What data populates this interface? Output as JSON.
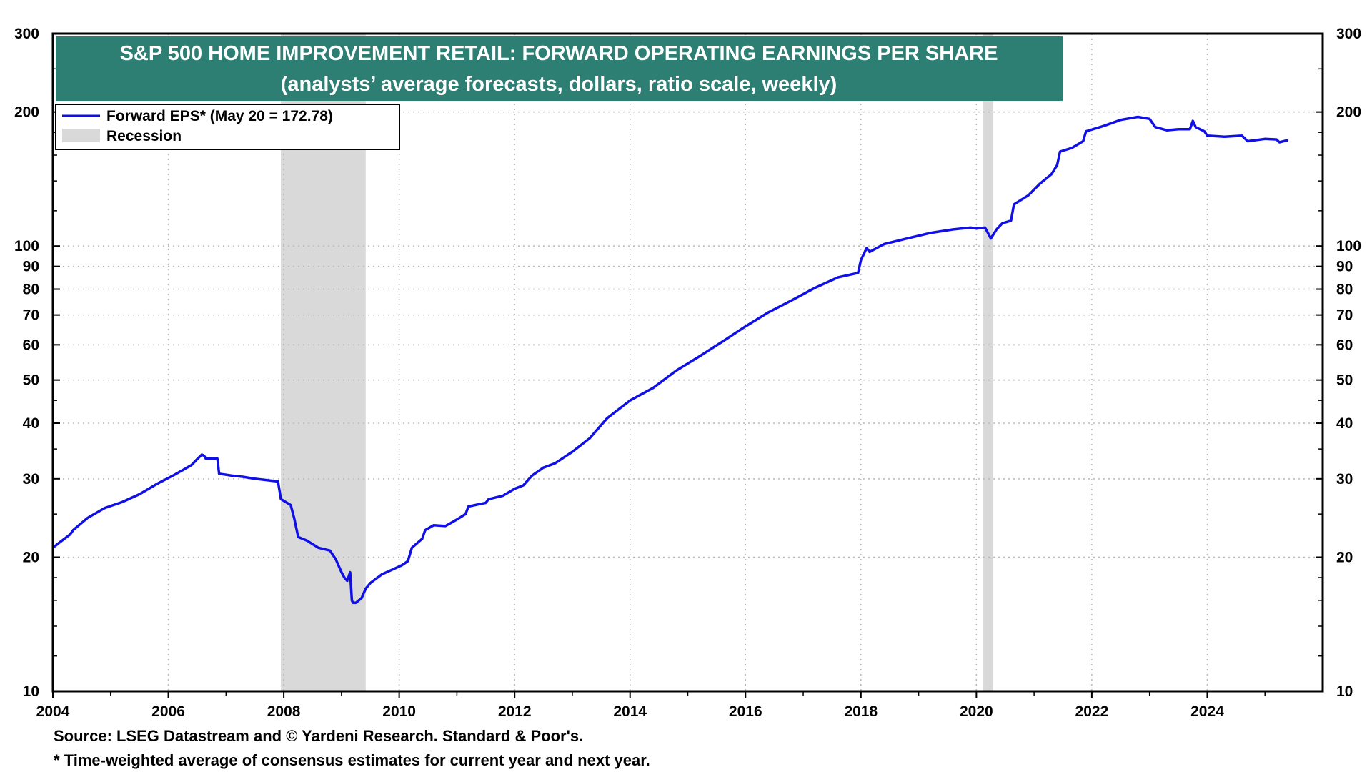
{
  "chart_data": {
    "type": "line",
    "title": "S&P 500 HOME IMPROVEMENT RETAIL: FORWARD OPERATING EARNINGS PER SHARE",
    "subtitle": "(analysts’ average forecasts, dollars, ratio scale, weekly)",
    "y_scale": "log",
    "ylim": [
      10,
      300
    ],
    "xlim": [
      2004,
      2026.0
    ],
    "y_ticks": [
      "300",
      "200",
      "100",
      "90",
      "80",
      "70",
      "60",
      "50",
      "40",
      "30",
      "20",
      "10"
    ],
    "x_ticks": [
      "2004",
      "2006",
      "2008",
      "2010",
      "2012",
      "2014",
      "2016",
      "2018",
      "2020",
      "2022",
      "2024"
    ],
    "grid": true,
    "legend_position": "top-left",
    "legend": {
      "series_label": "Forward EPS* (May 20 = 172.78)",
      "recession_label": "Recession"
    },
    "recessions": [
      {
        "start": 2007.95,
        "end": 2009.42
      },
      {
        "start": 2020.12,
        "end": 2020.29
      }
    ],
    "series": [
      {
        "name": "Forward EPS* (May 20 = 172.78)",
        "color": "#1010e6",
        "x": [
          2004.0,
          2004.1,
          2004.3,
          2004.35,
          2004.6,
          2004.9,
          2005.2,
          2005.5,
          2005.8,
          2006.1,
          2006.4,
          2006.5,
          2006.58,
          2006.62,
          2006.65,
          2006.85,
          2006.88,
          2007.1,
          2007.3,
          2007.5,
          2007.7,
          2007.8,
          2007.9,
          2007.95,
          2008.12,
          2008.18,
          2008.25,
          2008.4,
          2008.6,
          2008.8,
          2008.9,
          2009.0,
          2009.05,
          2009.1,
          2009.15,
          2009.18,
          2009.2,
          2009.25,
          2009.35,
          2009.42,
          2009.5,
          2009.7,
          2009.9,
          2010.05,
          2010.15,
          2010.22,
          2010.4,
          2010.45,
          2010.6,
          2010.8,
          2011.0,
          2011.15,
          2011.2,
          2011.5,
          2011.55,
          2011.8,
          2012.0,
          2012.15,
          2012.3,
          2012.5,
          2012.7,
          2013.0,
          2013.3,
          2013.6,
          2014.0,
          2014.4,
          2014.8,
          2015.2,
          2015.6,
          2016.0,
          2016.4,
          2016.8,
          2017.2,
          2017.6,
          2017.95,
          2018.0,
          2018.1,
          2018.15,
          2018.4,
          2018.8,
          2019.2,
          2019.6,
          2019.9,
          2020.0,
          2020.15,
          2020.25,
          2020.35,
          2020.45,
          2020.6,
          2020.65,
          2020.9,
          2021.1,
          2021.3,
          2021.4,
          2021.45,
          2021.65,
          2021.85,
          2021.9,
          2022.2,
          2022.5,
          2022.8,
          2023.0,
          2023.1,
          2023.3,
          2023.5,
          2023.7,
          2023.75,
          2023.8,
          2023.95,
          2024.0,
          2024.3,
          2024.6,
          2024.7,
          2025.0,
          2025.2,
          2025.25,
          2025.4
        ],
        "values": [
          21,
          21.5,
          22.5,
          23.0,
          24.5,
          25.8,
          26.6,
          27.7,
          29.2,
          30.6,
          32.2,
          33.2,
          34.0,
          33.8,
          33.3,
          33.3,
          30.8,
          30.5,
          30.3,
          30.0,
          29.8,
          29.7,
          29.6,
          27.0,
          26.2,
          24.5,
          22.2,
          21.8,
          21.0,
          20.7,
          19.8,
          18.5,
          18.0,
          17.7,
          18.5,
          16.0,
          15.8,
          15.8,
          16.2,
          17.0,
          17.5,
          18.3,
          18.8,
          19.2,
          19.6,
          21.0,
          22.0,
          23.0,
          23.6,
          23.5,
          24.3,
          25.0,
          26.0,
          26.5,
          27.0,
          27.5,
          28.5,
          29.0,
          30.5,
          31.8,
          32.5,
          34.5,
          37.0,
          41.0,
          45.0,
          48.0,
          52.5,
          56.5,
          61.0,
          66.0,
          71.0,
          75.5,
          80.5,
          85.0,
          87.0,
          93.0,
          99.0,
          97.0,
          101.0,
          104.0,
          107.0,
          109.0,
          110.0,
          109.5,
          110.0,
          104.0,
          109.0,
          112.5,
          114.0,
          124.0,
          130.0,
          138.0,
          145.0,
          152.0,
          163.0,
          166.0,
          172.0,
          181.0,
          186.0,
          192.0,
          195.0,
          193.0,
          185.0,
          182.0,
          183.0,
          183.0,
          191.0,
          185.0,
          181.0,
          177.0,
          176.0,
          177.0,
          172.0,
          174.0,
          173.5,
          171.0,
          173.0
        ]
      }
    ]
  },
  "footnotes": {
    "source": "Source: LSEG Datastream and © Yardeni Research. Standard & Poor's.",
    "note": "* Time-weighted average of consensus estimates for current year and next year."
  },
  "colors": {
    "title_bg": "#2e7f73",
    "line": "#1010e6",
    "recession": "#d9d9d9",
    "grid": "#b8b8b8"
  }
}
